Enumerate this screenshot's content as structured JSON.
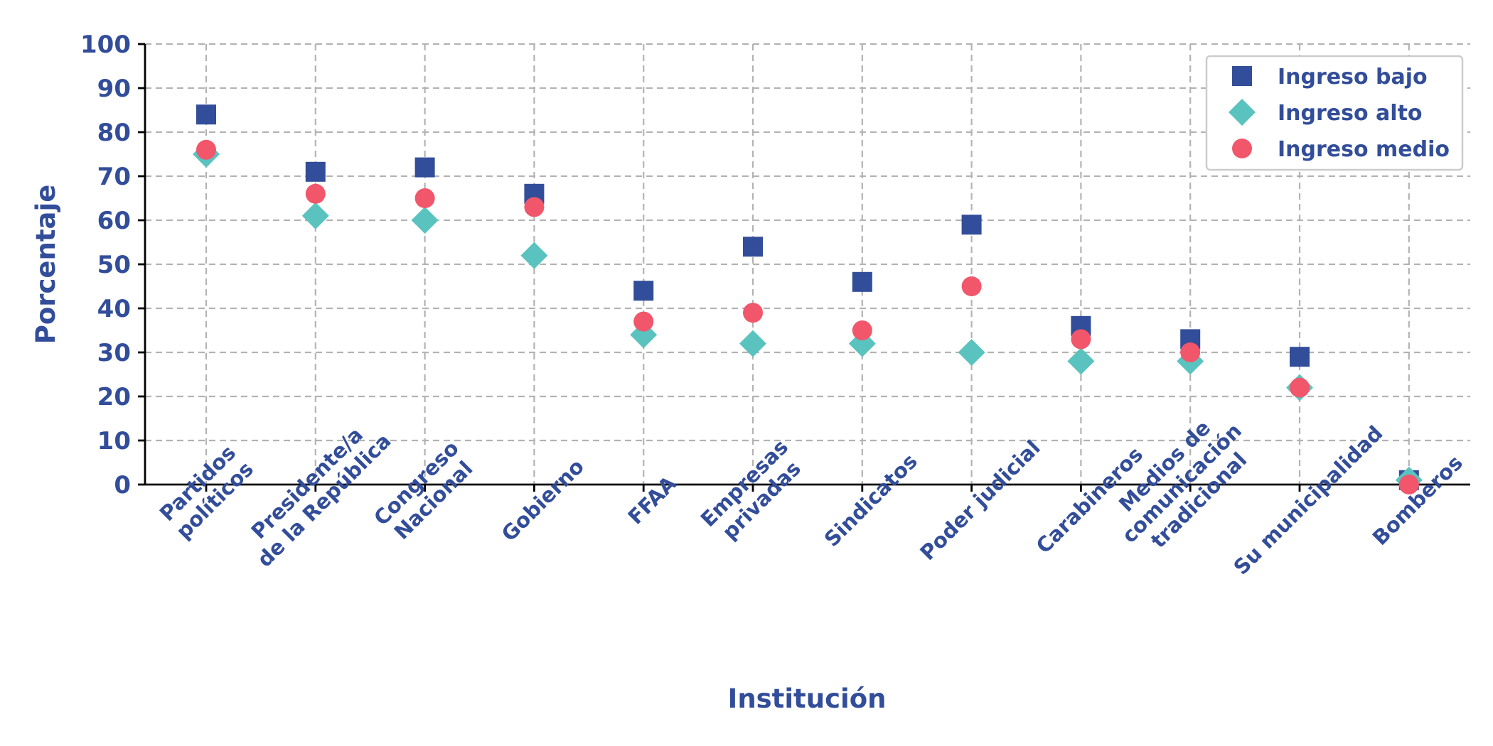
{
  "chart_data": {
    "type": "scatter",
    "xlabel": "Institución",
    "ylabel": "Porcentaje",
    "ylim": [
      0,
      100
    ],
    "yticks": [
      0,
      10,
      20,
      30,
      40,
      50,
      60,
      70,
      80,
      90,
      100
    ],
    "grid": true,
    "legend_position": "top-right",
    "categories": [
      [
        "Partidos",
        "políticos"
      ],
      [
        "Presidente/a",
        "de la República"
      ],
      [
        "Congreso",
        "Nacional"
      ],
      [
        "Gobierno"
      ],
      [
        "FFAA"
      ],
      [
        "Empresas",
        "privadas"
      ],
      [
        "Sindicatos"
      ],
      [
        "Poder judicial"
      ],
      [
        "Carabineros"
      ],
      [
        "Medios de",
        "comunicación",
        "tradicional"
      ],
      [
        "Su municipalidad"
      ],
      [
        "Bomberos"
      ]
    ],
    "series": [
      {
        "name": "Ingreso bajo",
        "marker": "square",
        "color": "#324d99",
        "values": [
          84,
          71,
          72,
          66,
          44,
          54,
          46,
          59,
          36,
          33,
          29,
          1
        ]
      },
      {
        "name": "Ingreso alto",
        "marker": "diamond",
        "color": "#5ac3bf",
        "values": [
          75,
          61,
          60,
          52,
          34,
          32,
          32,
          30,
          28,
          28,
          22,
          1
        ]
      },
      {
        "name": "Ingreso medio",
        "marker": "circle",
        "color": "#f1566a",
        "values": [
          76,
          66,
          65,
          63,
          37,
          39,
          35,
          45,
          33,
          30,
          22,
          0
        ]
      }
    ]
  }
}
